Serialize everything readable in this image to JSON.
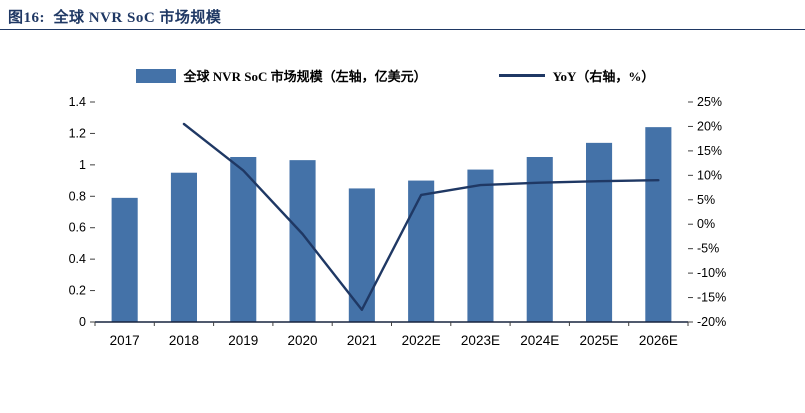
{
  "figure": {
    "title": "图16:  全球 NVR SoC 市场规模"
  },
  "chart_data": {
    "type": "bar+line",
    "title": "全球 NVR SoC 市场规模",
    "categories": [
      "2017",
      "2018",
      "2019",
      "2020",
      "2021",
      "2022E",
      "2023E",
      "2024E",
      "2025E",
      "2026E"
    ],
    "series": [
      {
        "name": "全球 NVR SoC 市场规模（左轴，亿美元）",
        "type": "bar",
        "axis": "left",
        "color": "#4472a8",
        "values": [
          0.79,
          0.95,
          1.05,
          1.03,
          0.85,
          0.9,
          0.97,
          1.05,
          1.14,
          1.24
        ]
      },
      {
        "name": "YoY（右轴，%）",
        "type": "line",
        "axis": "right",
        "color": "#1f3864",
        "values": [
          null,
          20.5,
          11,
          -2,
          -17.5,
          6,
          8,
          8.5,
          8.8,
          9
        ]
      }
    ],
    "left_axis": {
      "min": 0,
      "max": 1.4,
      "step": 0.2,
      "ticks": [
        "0",
        "0.2",
        "0.4",
        "0.6",
        "0.8",
        "1",
        "1.2",
        "1.4"
      ]
    },
    "right_axis": {
      "min": -20,
      "max": 25,
      "step": 5,
      "ticks": [
        "25%",
        "20%",
        "15%",
        "10%",
        "5%",
        "0%",
        "-5%",
        "-10%",
        "-15%",
        "-20%"
      ]
    },
    "legend_position": "top",
    "grid": false
  }
}
